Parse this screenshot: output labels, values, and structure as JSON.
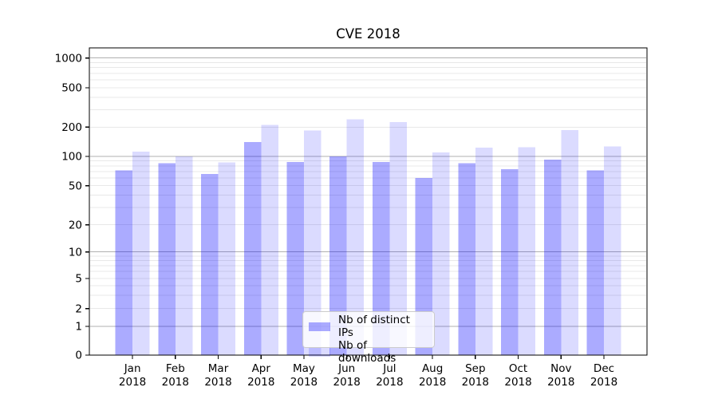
{
  "chart_data": {
    "type": "bar",
    "title": "CVE 2018",
    "categories": [
      "Jan",
      "Feb",
      "Mar",
      "Apr",
      "May",
      "Jun",
      "Jul",
      "Aug",
      "Sep",
      "Oct",
      "Nov",
      "Dec"
    ],
    "category_year": "2018",
    "series": [
      {
        "name": "Nb of distinct IPs",
        "color": "rgba(0,0,255,0.33)",
        "values": [
          72,
          85,
          66,
          140,
          88,
          100,
          88,
          60,
          85,
          74,
          93,
          72
        ]
      },
      {
        "name": "Nb of downloads",
        "color": "rgba(0,0,255,0.14)",
        "values": [
          112,
          100,
          87,
          210,
          185,
          240,
          224,
          110,
          123,
          124,
          187,
          127
        ]
      }
    ],
    "yticks": [
      0,
      1,
      2,
      5,
      10,
      20,
      50,
      100,
      200,
      500,
      1000
    ],
    "yscale": "symlog",
    "ylim": [
      0,
      1270
    ],
    "xlabel": "",
    "ylabel": "",
    "grid": "both",
    "legend_position": "lower center",
    "colors": {
      "major_grid": "#b0b0b0",
      "minor_grid": "#e8e8e8",
      "axis": "#000000",
      "background": "#ffffff"
    }
  }
}
